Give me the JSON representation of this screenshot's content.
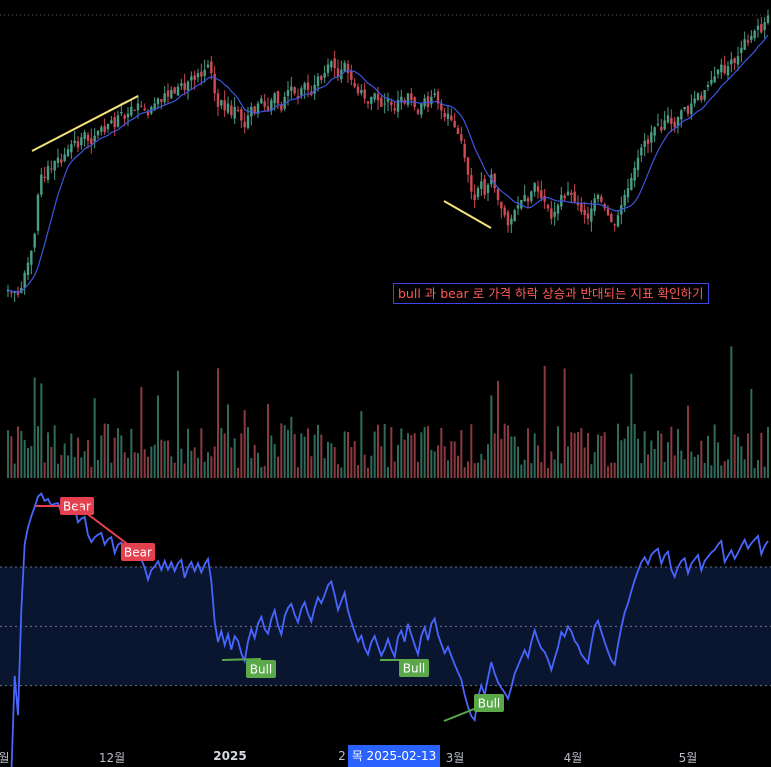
{
  "note": "bull 과 bear 로 가격 하락 상승과 반대되는 지표 확인하기",
  "x_axis": {
    "labels": [
      {
        "text": "월",
        "bold": false
      },
      {
        "text": "12월",
        "bold": false
      },
      {
        "text": "2025",
        "bold": true
      },
      {
        "text": "2",
        "bold": false
      },
      {
        "text": "3월",
        "bold": false
      },
      {
        "text": "4월",
        "bold": false
      },
      {
        "text": "5월",
        "bold": false
      }
    ],
    "crosshair": "목 2025-02-13"
  },
  "colors": {
    "up": "#4a9e86",
    "down": "#d04a54",
    "ma": "#3b56e0",
    "osc": "#4866ff",
    "bear": "#e5404f",
    "bull": "#5aa84a",
    "divergence_price": "#f5e27a",
    "note_border": "#3f46e8",
    "note_text": "#ff5a5a"
  },
  "chart_data": {
    "type": "candlestick",
    "series": [
      {
        "name": "",
        "kind": "close",
        "values": [
          62,
          60,
          61,
          59,
          63,
          72,
          78,
          85,
          95,
          118,
          130,
          128,
          135,
          133,
          138,
          140,
          137,
          142,
          145,
          148,
          150,
          146,
          152,
          155,
          150,
          148,
          153,
          156,
          158,
          155,
          160,
          162,
          158,
          165,
          167,
          163,
          166,
          170,
          168,
          172,
          170,
          168,
          165,
          170,
          172,
          175,
          173,
          178,
          176,
          180,
          178,
          182,
          184,
          180,
          185,
          188,
          186,
          190,
          188,
          192,
          195,
          190,
          178,
          170,
          174,
          168,
          172,
          165,
          170,
          168,
          162,
          158,
          165,
          170,
          166,
          172,
          175,
          170,
          168,
          174,
          178,
          172,
          168,
          176,
          180,
          182,
          178,
          175,
          181,
          184,
          180,
          177,
          183,
          188,
          186,
          190,
          195,
          197,
          193,
          188,
          192,
          196,
          190,
          186,
          182,
          178,
          180,
          175,
          172,
          176,
          178,
          174,
          170,
          172,
          175,
          171,
          168,
          174,
          176,
          172,
          178,
          174,
          170,
          166,
          172,
          175,
          170,
          176,
          178,
          172,
          168,
          164,
          166,
          162,
          158,
          154,
          150,
          140,
          130,
          120,
          115,
          122,
          126,
          118,
          124,
          130,
          122,
          115,
          110,
          106,
          100,
          104,
          109,
          112,
          115,
          118,
          114,
          120,
          125,
          120,
          116,
          114,
          110,
          104,
          108,
          112,
          118,
          116,
          120,
          118,
          114,
          112,
          108,
          106,
          104,
          110,
          116,
          118,
          114,
          110,
          106,
          102,
          100,
          106,
          112,
          118,
          122,
          128,
          134,
          140,
          146,
          150,
          148,
          155,
          158,
          160,
          156,
          162,
          165,
          160,
          158,
          164,
          168,
          170,
          166,
          172,
          175,
          178,
          174,
          180,
          183,
          186,
          188,
          192,
          195,
          190,
          194,
          198,
          196,
          200,
          205,
          210,
          208,
          212,
          215,
          218,
          214,
          220,
          224
        ]
      },
      {
        "name": "",
        "kind": "ma",
        "values": []
      }
    ],
    "volume": [],
    "indicator": {
      "name": "",
      "values": [],
      "levels": [
        70,
        50,
        30
      ],
      "range": [
        10,
        100
      ]
    },
    "divergences": [
      {
        "label": "Bear",
        "panel": "indicator"
      },
      {
        "label": "Bear",
        "panel": "indicator"
      },
      {
        "label": "Bull",
        "panel": "indicator"
      },
      {
        "label": "Bull",
        "panel": "indicator"
      },
      {
        "label": "Bull",
        "panel": "indicator"
      }
    ]
  }
}
